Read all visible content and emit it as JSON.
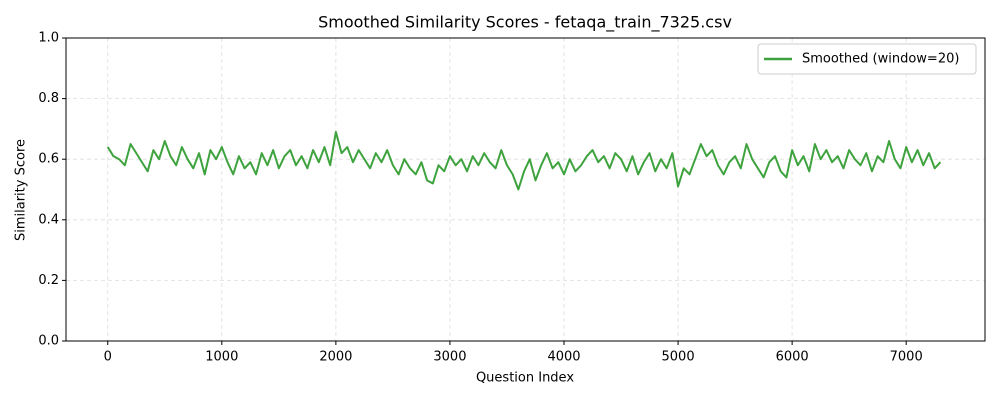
{
  "chart_data": {
    "type": "line",
    "title": "Smoothed Similarity Scores - fetaqa_train_7325.csv",
    "x_label": "Question Index",
    "y_label": "Similarity Score",
    "x": [
      0,
      50,
      100,
      150,
      200,
      250,
      300,
      350,
      400,
      450,
      500,
      550,
      600,
      650,
      700,
      750,
      800,
      850,
      900,
      950,
      1000,
      1050,
      1100,
      1150,
      1200,
      1250,
      1300,
      1350,
      1400,
      1450,
      1500,
      1550,
      1600,
      1650,
      1700,
      1750,
      1800,
      1850,
      1900,
      1950,
      2000,
      2050,
      2100,
      2150,
      2200,
      2250,
      2300,
      2350,
      2400,
      2450,
      2500,
      2550,
      2600,
      2650,
      2700,
      2750,
      2800,
      2850,
      2900,
      2950,
      3000,
      3050,
      3100,
      3150,
      3200,
      3250,
      3300,
      3350,
      3400,
      3450,
      3500,
      3550,
      3600,
      3650,
      3700,
      3750,
      3800,
      3850,
      3900,
      3950,
      4000,
      4050,
      4100,
      4150,
      4200,
      4250,
      4300,
      4350,
      4400,
      4450,
      4500,
      4550,
      4600,
      4650,
      4700,
      4750,
      4800,
      4850,
      4900,
      4950,
      5000,
      5050,
      5100,
      5150,
      5200,
      5250,
      5300,
      5350,
      5400,
      5450,
      5500,
      5550,
      5600,
      5650,
      5700,
      5750,
      5800,
      5850,
      5900,
      5950,
      6000,
      6050,
      6100,
      6150,
      6200,
      6250,
      6300,
      6350,
      6400,
      6450,
      6500,
      6550,
      6600,
      6650,
      6700,
      6750,
      6800,
      6850,
      6900,
      6950,
      7000,
      7050,
      7100,
      7150,
      7200,
      7250,
      7300
    ],
    "series": [
      {
        "name": "Smoothed (window=20)",
        "color": "#3ea33e",
        "values": [
          0.64,
          0.61,
          0.6,
          0.58,
          0.65,
          0.62,
          0.59,
          0.56,
          0.63,
          0.6,
          0.66,
          0.61,
          0.58,
          0.64,
          0.6,
          0.57,
          0.62,
          0.55,
          0.63,
          0.6,
          0.64,
          0.59,
          0.55,
          0.61,
          0.57,
          0.59,
          0.55,
          0.62,
          0.58,
          0.63,
          0.57,
          0.61,
          0.63,
          0.58,
          0.61,
          0.57,
          0.63,
          0.59,
          0.64,
          0.58,
          0.69,
          0.62,
          0.64,
          0.59,
          0.63,
          0.6,
          0.57,
          0.62,
          0.59,
          0.63,
          0.58,
          0.55,
          0.6,
          0.57,
          0.55,
          0.59,
          0.53,
          0.52,
          0.58,
          0.56,
          0.61,
          0.58,
          0.6,
          0.56,
          0.61,
          0.58,
          0.62,
          0.59,
          0.57,
          0.63,
          0.58,
          0.55,
          0.5,
          0.56,
          0.6,
          0.53,
          0.58,
          0.62,
          0.57,
          0.59,
          0.55,
          0.6,
          0.56,
          0.58,
          0.61,
          0.63,
          0.59,
          0.61,
          0.57,
          0.62,
          0.6,
          0.56,
          0.61,
          0.55,
          0.59,
          0.62,
          0.56,
          0.6,
          0.57,
          0.62,
          0.51,
          0.57,
          0.55,
          0.6,
          0.65,
          0.61,
          0.63,
          0.58,
          0.55,
          0.59,
          0.61,
          0.57,
          0.65,
          0.6,
          0.57,
          0.54,
          0.59,
          0.61,
          0.56,
          0.54,
          0.63,
          0.58,
          0.61,
          0.56,
          0.65,
          0.6,
          0.63,
          0.59,
          0.61,
          0.57,
          0.63,
          0.6,
          0.58,
          0.62,
          0.56,
          0.61,
          0.59,
          0.66,
          0.6,
          0.57,
          0.64,
          0.59,
          0.63,
          0.58,
          0.62,
          0.57,
          0.59
        ]
      }
    ],
    "xlim": [
      -366,
      7691
    ],
    "ylim": [
      0,
      1.0
    ],
    "xticks": [
      0,
      1000,
      2000,
      3000,
      4000,
      5000,
      6000,
      7000
    ],
    "yticks": [
      {
        "value": 0,
        "label": "0.0"
      },
      {
        "value": 0.2,
        "label": "0.2"
      },
      {
        "value": 0.4,
        "label": "0.4"
      },
      {
        "value": 0.6,
        "label": "0.6"
      },
      {
        "value": 0.8,
        "label": "0.8"
      },
      {
        "value": 1.0,
        "label": "1.0"
      }
    ],
    "grid": true,
    "legend": "upper right"
  }
}
